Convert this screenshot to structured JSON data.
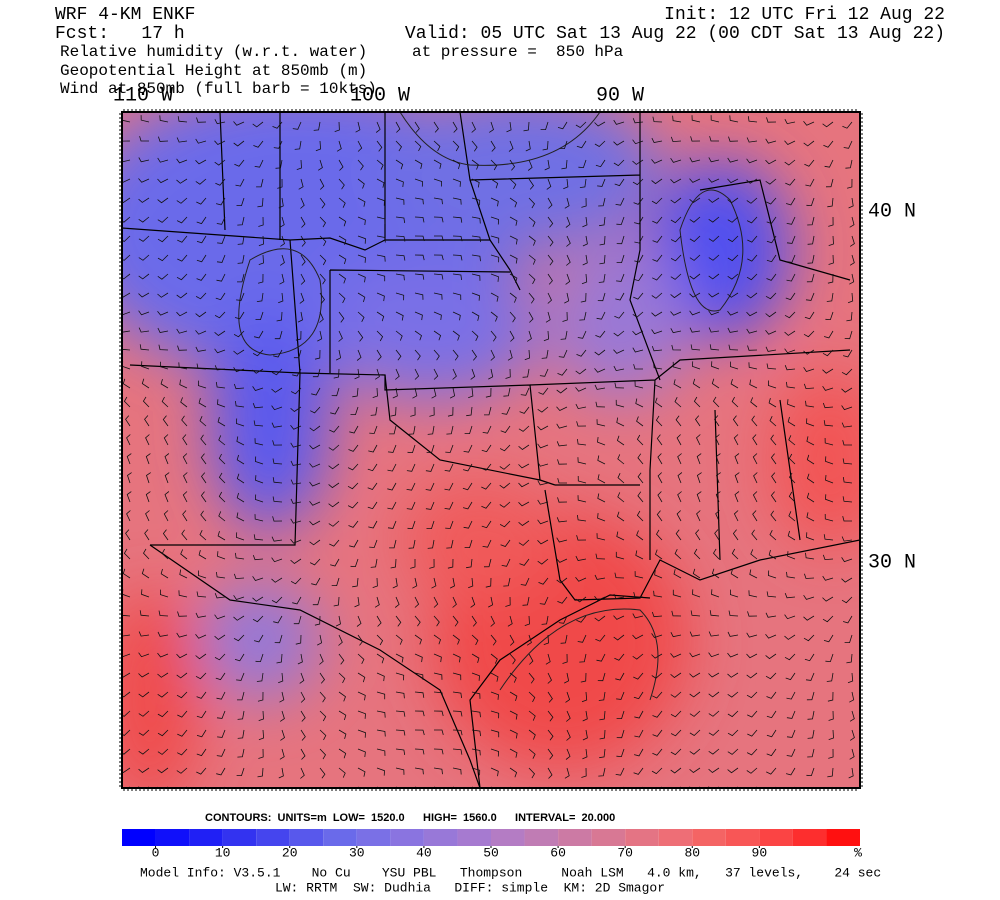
{
  "header": {
    "title": "WRF 4-KM ENKF",
    "forecast": "Fcst:   17 h",
    "fields": [
      "Relative humidity (w.r.t. water)",
      "Geopotential Height at 850mb (m)",
      "Wind at 850mb (full barb = 10kts)"
    ],
    "init": "Init: 12 UTC Fri 12 Aug 22",
    "valid": "Valid: 05 UTC Sat 13 Aug 22 (00 CDT Sat 13 Aug 22)",
    "pressure": "at pressure =  850 hPa"
  },
  "map": {
    "lon_labels": [
      "110 W",
      "100 W",
      "90 W"
    ],
    "lat_labels": [
      "40 N",
      "30 N"
    ]
  },
  "contours": "CONTOURS:  UNITS=m  LOW=  1520.0      HIGH=  1560.0      INTERVAL=  20.000",
  "colorbar": {
    "range": [
      -5,
      105
    ],
    "ticks": [
      0,
      10,
      20,
      30,
      40,
      50,
      60,
      70,
      80,
      90
    ],
    "unit": "%",
    "colors": [
      "#0000ff",
      "#1010fa",
      "#2020f5",
      "#3333f0",
      "#4545ee",
      "#5858ec",
      "#6a6aea",
      "#7a70e6",
      "#8a74e0",
      "#9878d8",
      "#a67ad0",
      "#b47cc4",
      "#c07cb4",
      "#cc7aa4",
      "#d87894",
      "#e47484",
      "#ee6e76",
      "#f46464",
      "#f85656",
      "#fb4444",
      "#fd2e2e",
      "#ff1010"
    ]
  },
  "footer": [
    "Model Info: V3.5.1    No Cu    YSU PBL   Thompson     Noah LSM   4.0 km,   37 levels,    24 sec",
    "LW: RRTM  SW: Dudhia   DIFF: simple  KM: 2D Smagor"
  ]
}
